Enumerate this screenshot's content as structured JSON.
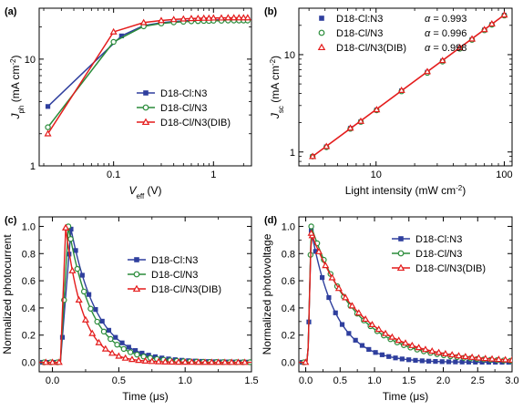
{
  "colors": {
    "blue": "#2f3f9e",
    "green": "#2a8c3a",
    "red": "#e41c1c"
  },
  "chart_data": [
    {
      "panel": "(a)",
      "type": "line",
      "xscale": "log",
      "yscale": "log",
      "xlim": [
        0.018,
        2.4
      ],
      "ylim": [
        1,
        30
      ],
      "xticks": [
        0.1,
        1
      ],
      "xtick_labels": [
        "0.1",
        "1"
      ],
      "yticks": [
        1,
        10
      ],
      "ytick_labels": [
        "1",
        "10"
      ],
      "xlabel": {
        "main": "V",
        "sub": "eff",
        "rest": " (V)"
      },
      "ylabel": {
        "main": "J",
        "sub": "ph",
        "rest": " (mA cm",
        "sup": "-2",
        "end": ")"
      },
      "legend_position": "center-right",
      "series": [
        {
          "name": "D18-Cl:N3",
          "marker": "square",
          "color": "blue",
          "x": [
            0.022,
            0.12,
            0.2,
            0.3,
            0.4,
            0.5,
            0.6,
            0.7,
            0.8,
            0.9,
            1.0,
            1.2,
            1.4,
            1.6,
            1.8,
            2.0,
            2.2
          ],
          "y": [
            3.6,
            16.5,
            20.6,
            21.9,
            22.5,
            22.8,
            23.0,
            23.1,
            23.2,
            23.2,
            23.3,
            23.3,
            23.4,
            23.4,
            23.4,
            23.4,
            23.4
          ]
        },
        {
          "name": "D18-Cl/N3",
          "marker": "circle",
          "color": "green",
          "x": [
            0.022,
            0.1,
            0.2,
            0.3,
            0.4,
            0.5,
            0.6,
            0.7,
            0.8,
            0.9,
            1.0,
            1.2,
            1.4,
            1.6,
            1.8,
            2.0,
            2.2
          ],
          "y": [
            2.3,
            14.5,
            20.3,
            21.6,
            22.1,
            22.4,
            22.6,
            22.7,
            22.8,
            22.8,
            22.9,
            22.9,
            23.0,
            23.0,
            23.0,
            23.0,
            23.0
          ]
        },
        {
          "name": "D18-Cl/N3(DIB)",
          "marker": "triangle",
          "color": "red",
          "x": [
            0.022,
            0.1,
            0.2,
            0.3,
            0.4,
            0.5,
            0.6,
            0.7,
            0.8,
            0.9,
            1.0,
            1.2,
            1.4,
            1.6,
            1.8,
            2.0,
            2.2
          ],
          "y": [
            2.0,
            18.0,
            22.0,
            23.0,
            23.5,
            23.8,
            24.0,
            24.1,
            24.2,
            24.2,
            24.3,
            24.3,
            24.4,
            24.4,
            24.4,
            24.4,
            24.4
          ]
        }
      ]
    },
    {
      "panel": "(b)",
      "type": "scatter",
      "xscale": "log",
      "yscale": "log",
      "xlim": [
        2.5,
        115
      ],
      "ylim": [
        0.72,
        30
      ],
      "xticks": [
        10,
        100
      ],
      "xtick_labels": [
        "10",
        "100"
      ],
      "yticks": [
        1,
        10
      ],
      "ytick_labels": [
        "1",
        "10"
      ],
      "xlabel": {
        "main": "Light intensity (mW cm",
        "sup": "-2",
        "end": ")"
      },
      "ylabel": {
        "main": "J",
        "sub": "sc",
        "rest": " (mA cm",
        "sup": "-2",
        "end": ")"
      },
      "legend_position": "top-left",
      "alpha_symbol": "α",
      "series": [
        {
          "name": "D18-Cl:N3",
          "marker": "square",
          "color": "blue",
          "alpha": "= 0.993",
          "x": [
            3.2,
            4.1,
            6.3,
            7.6,
            10.1,
            15.8,
            25.1,
            33.0,
            45.0,
            56.0,
            70.0,
            80.0,
            100
          ],
          "y": [
            0.9,
            1.13,
            1.75,
            2.05,
            2.7,
            4.25,
            6.6,
            8.6,
            11.6,
            14.3,
            17.9,
            20.4,
            25.4
          ]
        },
        {
          "name": "D18-Cl/N3",
          "marker": "circle",
          "color": "green",
          "alpha": "= 0.996",
          "x": [
            3.2,
            4.1,
            6.3,
            7.6,
            10.1,
            15.8,
            25.1,
            33.0,
            45.0,
            56.0,
            70.0,
            80.0,
            100
          ],
          "y": [
            0.9,
            1.12,
            1.73,
            2.04,
            2.68,
            4.2,
            6.5,
            8.5,
            11.5,
            14.2,
            17.8,
            20.3,
            25.2
          ]
        },
        {
          "name": "D18-Cl/N3(DIB)",
          "marker": "triangle",
          "color": "red",
          "alpha": "= 0.998",
          "x": [
            3.2,
            4.1,
            6.3,
            7.6,
            10.1,
            15.8,
            25.1,
            33.0,
            45.0,
            56.0,
            70.0,
            80.0,
            100
          ],
          "y": [
            0.9,
            1.14,
            1.76,
            2.07,
            2.72,
            4.3,
            6.7,
            8.7,
            11.8,
            14.5,
            18.1,
            20.7,
            25.6
          ]
        }
      ]
    },
    {
      "panel": "(c)",
      "type": "line",
      "xscale": "linear",
      "yscale": "linear",
      "xlim": [
        -0.1,
        1.5
      ],
      "ylim": [
        -0.07,
        1.07
      ],
      "xticks": [
        0.0,
        0.5,
        1.0,
        1.5
      ],
      "xtick_labels": [
        "0.0",
        "0.5",
        "1.0",
        "1.5"
      ],
      "yticks": [
        0.0,
        0.2,
        0.4,
        0.6,
        0.8,
        1.0
      ],
      "ytick_labels": [
        "0.0",
        "0.2",
        "0.4",
        "0.6",
        "0.8",
        "1.0"
      ],
      "xlabel": {
        "main": "Time (μs)"
      },
      "ylabel": {
        "main": "Normalized photocurrent"
      },
      "legend_position": "center-right",
      "series": [
        {
          "name": "D18-Cl:N3",
          "marker": "square",
          "color": "blue",
          "peak": 0.14,
          "peak_value": 0.98,
          "rise_start": 0.06,
          "tau": 0.2
        },
        {
          "name": "D18-Cl/N3",
          "marker": "circle",
          "color": "green",
          "peak": 0.12,
          "peak_value": 1.0,
          "rise_start": 0.06,
          "tau": 0.18
        },
        {
          "name": "D18-Cl/N3(DIB)",
          "marker": "triangle",
          "color": "red",
          "peak": 0.1,
          "peak_value": 0.99,
          "rise_start": 0.06,
          "tau": 0.13
        }
      ]
    },
    {
      "panel": "(d)",
      "type": "line",
      "xscale": "linear",
      "yscale": "linear",
      "xlim": [
        -0.1,
        3.0
      ],
      "ylim": [
        -0.07,
        1.07
      ],
      "xticks": [
        0.0,
        0.5,
        1.0,
        1.5,
        2.0,
        2.5,
        3.0
      ],
      "xtick_labels": [
        "0.0",
        "0.5",
        "1.0",
        "1.5",
        "2.0",
        "2.5",
        "3.0"
      ],
      "yticks": [
        0.0,
        0.2,
        0.4,
        0.6,
        0.8,
        1.0
      ],
      "ytick_labels": [
        "0.0",
        "0.2",
        "0.4",
        "0.6",
        "0.8",
        "1.0"
      ],
      "xlabel": {
        "main": "Time (μs)"
      },
      "ylabel": {
        "main": "Normalized photovoltage"
      },
      "legend_position": "top-right",
      "series": [
        {
          "name": "D18-Cl:N3",
          "marker": "square",
          "color": "blue",
          "peak": 0.08,
          "peak_value": 0.97,
          "rise_start": 0.03,
          "tau": 0.36
        },
        {
          "name": "D18-Cl/N3",
          "marker": "circle",
          "color": "green",
          "peak": 0.08,
          "peak_value": 1.0,
          "rise_start": 0.03,
          "tau": 0.65
        },
        {
          "name": "D18-Cl/N3(DIB)",
          "marker": "triangle",
          "color": "red",
          "peak": 0.08,
          "peak_value": 0.95,
          "rise_start": 0.03,
          "tau": 0.72
        }
      ]
    }
  ]
}
